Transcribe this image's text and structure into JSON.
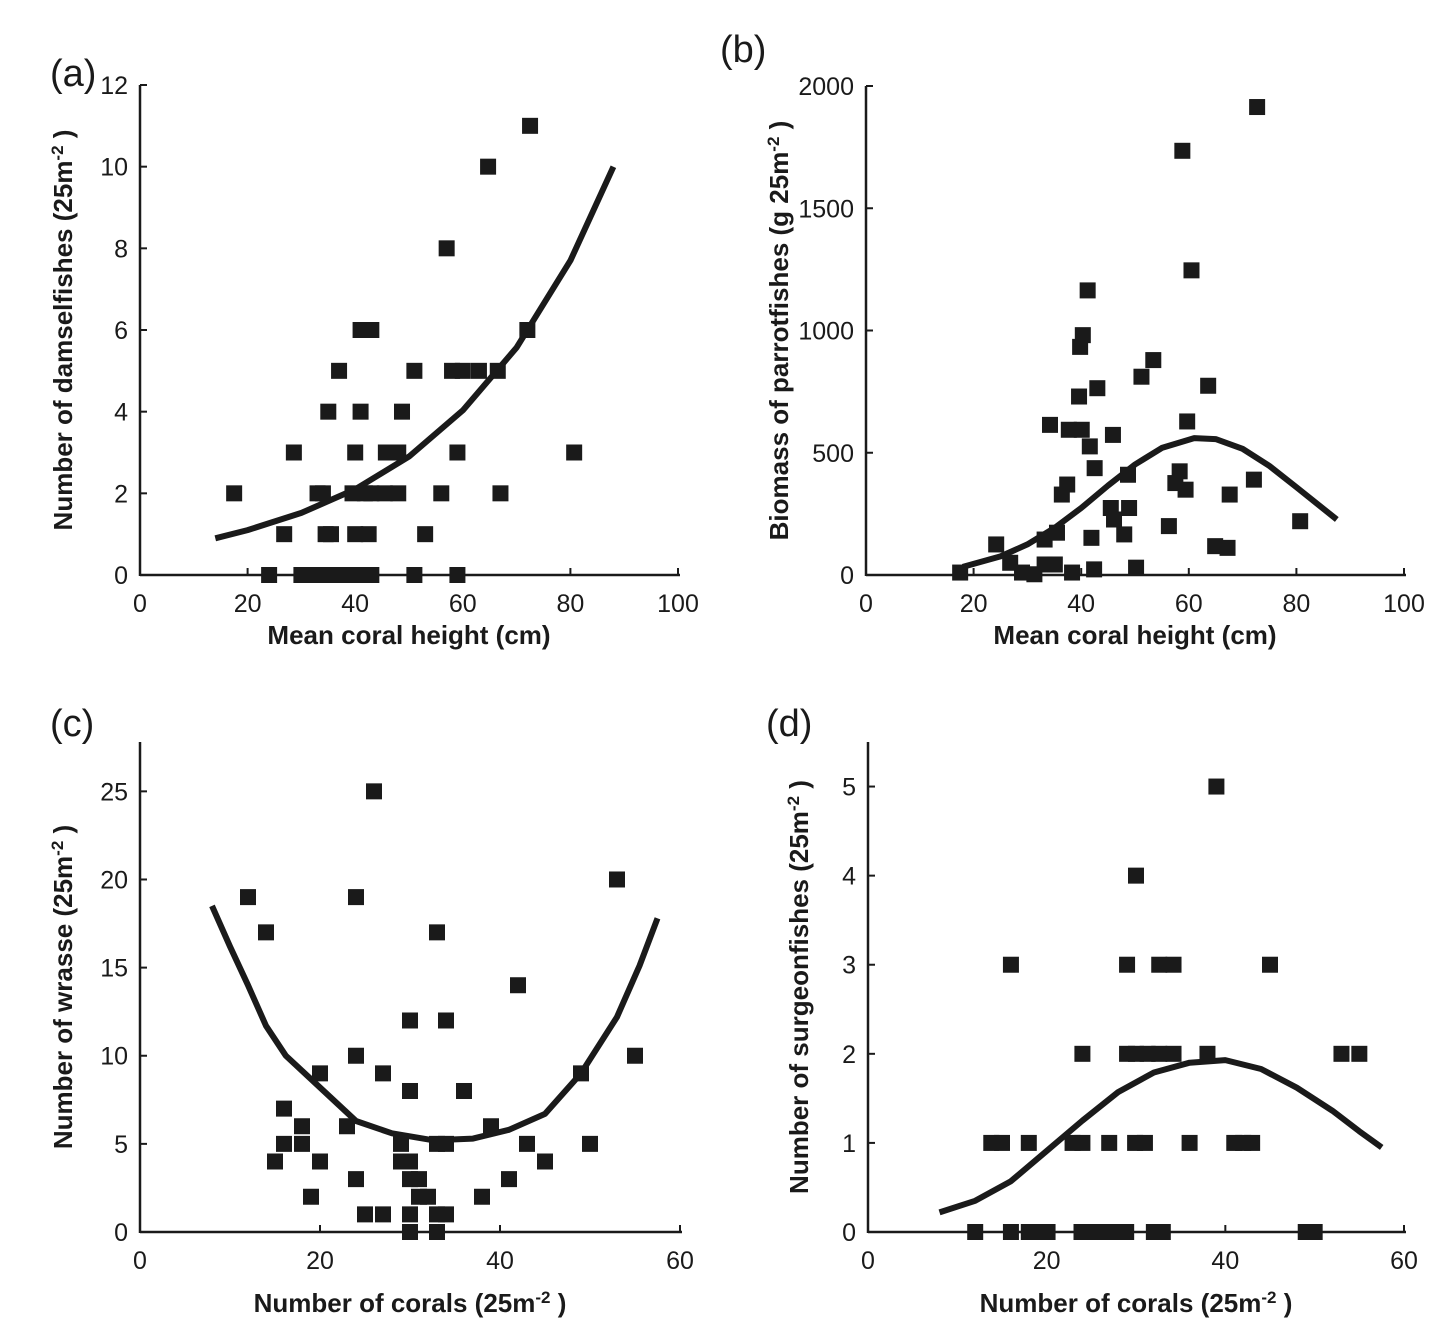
{
  "chart_data": [
    {
      "panel": "(a)",
      "type": "scatter",
      "xlabel": {
        "text": "Mean coral height (cm)",
        "sup": "",
        "tail": ""
      },
      "ylabel": {
        "text": "Number of damselfishes (25m",
        "sup": "-2",
        "tail": " )"
      },
      "xlim": [
        0,
        100
      ],
      "ylim": [
        0,
        12
      ],
      "xticks": [
        0,
        20,
        40,
        60,
        80,
        100
      ],
      "yticks": [
        0,
        2,
        4,
        6,
        8,
        10,
        12
      ],
      "grid": false,
      "marker": "square",
      "color": "#1a1a1a",
      "points": {
        "x": [
          17.5,
          24,
          30,
          32,
          33.5,
          36,
          38,
          40,
          42,
          43,
          51,
          59,
          26.8,
          28.6,
          33,
          34,
          34.5,
          35.5,
          35,
          37,
          40,
          41,
          40,
          42.5,
          39.5,
          41.8,
          43,
          41,
          43,
          45.7,
          48,
          45.5,
          48,
          48.7,
          51,
          53,
          56,
          57,
          59,
          58,
          60,
          63,
          66.5,
          64.7,
          67,
          72,
          72.5,
          80.7
        ],
        "y": [
          2,
          0,
          0,
          0,
          0,
          0,
          0,
          0,
          0,
          0,
          0,
          0,
          1,
          3,
          2,
          2,
          1,
          1,
          4,
          5,
          3,
          4,
          1,
          1,
          2,
          2,
          2,
          6,
          6,
          3,
          3,
          2,
          2,
          4,
          5,
          1,
          2,
          8,
          3,
          5,
          5,
          5,
          5,
          10,
          2,
          6,
          11,
          3
        ]
      },
      "fit": {
        "x": [
          14,
          20,
          30,
          40,
          50,
          60,
          70,
          80,
          88
        ],
        "y": [
          0.9,
          1.1,
          1.52,
          2.1,
          2.9,
          4.03,
          5.57,
          7.7,
          10.0
        ]
      }
    },
    {
      "panel": "(b)",
      "type": "scatter",
      "xlabel": {
        "text": "Mean coral height (cm)",
        "sup": "",
        "tail": ""
      },
      "ylabel": {
        "text": "Biomass of parrotfishes (g 25m",
        "sup": "-2",
        "tail": " )"
      },
      "xlim": [
        0,
        100
      ],
      "ylim": [
        0,
        2000
      ],
      "xticks": [
        0,
        20,
        40,
        60,
        80,
        100
      ],
      "yticks": [
        0,
        500,
        1000,
        1500,
        2000
      ],
      "grid": false,
      "marker": "square",
      "color": "#1a1a1a",
      "points": {
        "x": [
          17.5,
          24.2,
          26.8,
          29,
          31.3,
          33.2,
          35.1,
          33.2,
          35.5,
          38.3,
          34.2,
          37.7,
          40.1,
          41.6,
          36.4,
          37.4,
          39.6,
          39.8,
          40.3,
          41.2,
          43,
          42.5,
          41.9,
          42.4,
          45.9,
          45.5,
          46.1,
          48.7,
          48.9,
          48,
          50.2,
          51.2,
          53.4,
          56.3,
          58.8,
          58.3,
          57.5,
          59.4,
          59.7,
          60.5,
          63.6,
          64.9,
          67.2,
          67.6,
          72.1,
          72.7,
          80.7
        ],
        "y": [
          10,
          125,
          50,
          10,
          3,
          43,
          43,
          145,
          173,
          10,
          614,
          594,
          594,
          526,
          329,
          370,
          730,
          933,
          981,
          1164,
          764,
          437,
          152,
          23,
          573,
          274,
          227,
          410,
          274,
          166,
          30,
          811,
          879,
          200,
          1735,
          424,
          376,
          349,
          628,
          1246,
          774,
          118,
          111,
          329,
          390,
          1914,
          220
        ]
      },
      "fit": {
        "x": [
          18,
          25,
          30,
          35,
          40,
          45,
          50,
          55,
          61,
          65,
          70,
          75,
          80,
          87.5
        ],
        "y": [
          33,
          76,
          125,
          192,
          274,
          366,
          452,
          520,
          560,
          556,
          516,
          446,
          359,
          227
        ]
      }
    },
    {
      "panel": "(c)",
      "type": "scatter",
      "xlabel": {
        "text": "Number of corals (25m",
        "sup": "-2",
        "tail": " )"
      },
      "ylabel": {
        "text": "Number of wrasse (25m",
        "sup": "-2",
        "tail": " )"
      },
      "xlim": [
        0,
        60
      ],
      "ylim": [
        0,
        27.8
      ],
      "xticks": [
        0,
        20,
        40,
        60
      ],
      "yticks": [
        0,
        5,
        10,
        15,
        20,
        25
      ],
      "grid": false,
      "marker": "square",
      "color": "#1a1a1a",
      "points": {
        "x": [
          12,
          14,
          24,
          26,
          33,
          53,
          42,
          30,
          34,
          24,
          55,
          20,
          27,
          49,
          30,
          36,
          16,
          18,
          23,
          39,
          16,
          18,
          29,
          33,
          34,
          43,
          50,
          15,
          20,
          29,
          30,
          45,
          24,
          30,
          31,
          41,
          19,
          31,
          32,
          38,
          25,
          27,
          30,
          33,
          34,
          30,
          33
        ],
        "y": [
          19,
          17,
          19,
          25,
          17,
          20,
          14,
          12,
          12,
          10,
          10,
          9,
          9,
          9,
          8,
          8,
          7,
          6,
          6,
          6,
          5,
          5,
          5,
          5,
          5,
          5,
          5,
          4,
          4,
          4,
          4,
          4,
          3,
          3,
          3,
          3,
          2,
          2,
          2,
          2,
          1,
          1,
          1,
          1,
          1,
          0,
          0
        ]
      },
      "fit": {
        "x": [
          8,
          10,
          12,
          14,
          16.2,
          20,
          24,
          28,
          32.6,
          37,
          41,
          45,
          49,
          53,
          55.5,
          57.5
        ],
        "y": [
          18.5,
          16.2,
          14,
          11.7,
          10,
          8.2,
          6.3,
          5.6,
          5.2,
          5.3,
          5.8,
          6.7,
          9,
          12.2,
          15.1,
          17.8
        ]
      }
    },
    {
      "panel": "(d)",
      "type": "scatter",
      "xlabel": {
        "text": "Number of corals (25m",
        "sup": "-2",
        "tail": " )"
      },
      "ylabel": {
        "text": "Number of surgeonfishes (25m",
        "sup": "-2",
        "tail": " )"
      },
      "xlim": [
        0,
        60
      ],
      "ylim": [
        0,
        5.5
      ],
      "xticks": [
        0,
        20,
        40,
        60
      ],
      "yticks": [
        0,
        1,
        2,
        3,
        4,
        5
      ],
      "grid": false,
      "marker": "square",
      "color": "#1a1a1a",
      "points": {
        "x": [
          39,
          30,
          16,
          29,
          32.6,
          34.2,
          45,
          24,
          29,
          30,
          31.3,
          32.6,
          34.2,
          38,
          53,
          55,
          13.8,
          15,
          18,
          22.9,
          24,
          27,
          29.9,
          31,
          36,
          41,
          42,
          43,
          12,
          16,
          18,
          19.2,
          20.1,
          23.9,
          25,
          26.2,
          27.4,
          28.9,
          32,
          33,
          49,
          50
        ],
        "y": [
          5,
          4,
          3,
          3,
          3,
          3,
          3,
          2,
          2,
          2,
          2,
          2,
          2,
          2,
          2,
          2,
          1,
          1,
          1,
          1,
          1,
          1,
          1,
          1,
          1,
          1,
          1,
          1,
          0,
          0,
          0,
          0,
          0,
          0,
          0,
          0,
          0,
          0,
          0,
          0,
          0,
          0
        ]
      },
      "fit": {
        "x": [
          8,
          12,
          16,
          20,
          24,
          28,
          32,
          36,
          40,
          44,
          48,
          52,
          55,
          57.5
        ],
        "y": [
          0.22,
          0.35,
          0.57,
          0.91,
          1.25,
          1.57,
          1.79,
          1.9,
          1.93,
          1.83,
          1.62,
          1.36,
          1.13,
          0.95
        ]
      }
    }
  ]
}
